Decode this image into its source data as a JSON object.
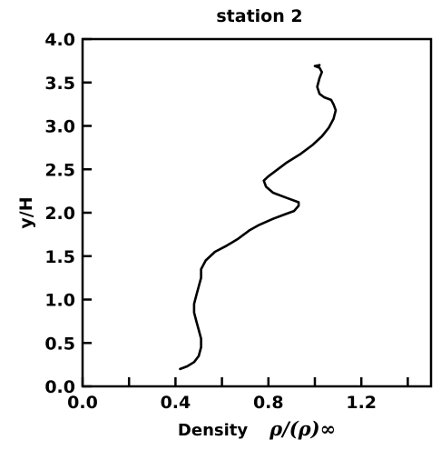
{
  "chart_data": {
    "type": "line",
    "title": "station 2",
    "xlabel": "Density",
    "xlabel_symbol": "ρ/(ρ)∞",
    "ylabel": "y/H",
    "xlim": [
      0.0,
      1.5
    ],
    "ylim": [
      0.0,
      4.0
    ],
    "xticks": [
      0.0,
      0.2,
      0.4,
      0.6,
      0.8,
      1.0,
      1.2,
      1.4
    ],
    "xtick_labels": [
      "0.0",
      "0.4",
      "0.8",
      "1.2"
    ],
    "xtick_label_values": [
      0.0,
      0.4,
      0.8,
      1.2
    ],
    "yticks": [
      0.0,
      0.5,
      1.0,
      1.5,
      2.0,
      2.5,
      3.0,
      3.5,
      4.0
    ],
    "ytick_labels": [
      "0.0",
      "0.5",
      "1.0",
      "1.5",
      "2.0",
      "2.5",
      "3.0",
      "3.5",
      "4.0"
    ],
    "grid": false,
    "series": [
      {
        "points": [
          [
            0.42,
            0.2
          ],
          [
            0.45,
            0.23
          ],
          [
            0.48,
            0.28
          ],
          [
            0.5,
            0.35
          ],
          [
            0.51,
            0.45
          ],
          [
            0.51,
            0.55
          ],
          [
            0.5,
            0.65
          ],
          [
            0.49,
            0.75
          ],
          [
            0.48,
            0.85
          ],
          [
            0.48,
            0.95
          ],
          [
            0.49,
            1.05
          ],
          [
            0.5,
            1.15
          ],
          [
            0.51,
            1.25
          ],
          [
            0.51,
            1.35
          ],
          [
            0.53,
            1.45
          ],
          [
            0.57,
            1.55
          ],
          [
            0.62,
            1.62
          ],
          [
            0.67,
            1.7
          ],
          [
            0.72,
            1.8
          ],
          [
            0.76,
            1.86
          ],
          [
            0.82,
            1.93
          ],
          [
            0.87,
            1.98
          ],
          [
            0.91,
            2.02
          ],
          [
            0.93,
            2.08
          ],
          [
            0.93,
            2.12
          ],
          [
            0.88,
            2.17
          ],
          [
            0.82,
            2.23
          ],
          [
            0.79,
            2.3
          ],
          [
            0.78,
            2.37
          ],
          [
            0.8,
            2.42
          ],
          [
            0.84,
            2.5
          ],
          [
            0.88,
            2.58
          ],
          [
            0.94,
            2.68
          ],
          [
            0.99,
            2.78
          ],
          [
            1.03,
            2.88
          ],
          [
            1.06,
            2.98
          ],
          [
            1.08,
            3.08
          ],
          [
            1.09,
            3.18
          ],
          [
            1.08,
            3.25
          ],
          [
            1.07,
            3.3
          ],
          [
            1.04,
            3.33
          ],
          [
            1.02,
            3.37
          ],
          [
            1.01,
            3.45
          ],
          [
            1.02,
            3.55
          ],
          [
            1.03,
            3.62
          ],
          [
            1.02,
            3.67
          ],
          [
            1.0,
            3.69
          ],
          [
            1.02,
            3.7
          ]
        ]
      }
    ]
  }
}
